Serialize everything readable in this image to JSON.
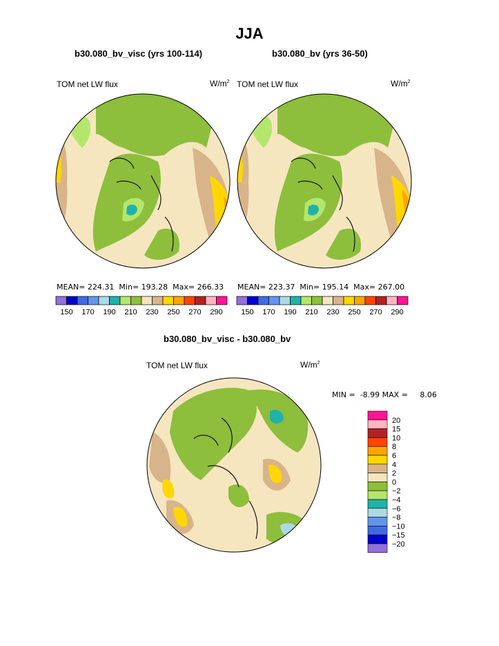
{
  "figure": {
    "title": "JJA",
    "maps": [
      {
        "subtitle": "b30.080_bv_visc (yrs 100-114)",
        "variable": "TOM net LW flux",
        "units_base": "W/m",
        "units_exp": "2",
        "stats": {
          "mean_label": "MEAN=",
          "mean": "224.31",
          "min_label": "Min=",
          "min": "193.28",
          "max_label": "Max=",
          "max": "266.33"
        }
      },
      {
        "subtitle": "b30.080_bv (yrs 36-50)",
        "variable": "TOM net LW flux",
        "units_base": "W/m",
        "units_exp": "2",
        "stats": {
          "mean_label": "MEAN=",
          "mean": "223.37",
          "min_label": "Min=",
          "min": "195.14",
          "max_label": "Max=",
          "max": "267.00"
        }
      }
    ],
    "diff": {
      "subtitle": "b30.080_bv_visc - b30.080_bv",
      "variable": "TOM net LW flux",
      "units_base": "W/m",
      "units_exp": "2",
      "min_label": "MIN =",
      "min": "-8.99",
      "max_label": "MAX =",
      "max": "8.06"
    }
  },
  "chart_data": [
    {
      "type": "heatmap",
      "projection": "north polar stereographic",
      "title": "b30.080_bv_visc (yrs 100-114)",
      "variable": "TOM net LW flux",
      "units": "W/m2",
      "mean": 224.31,
      "min": 193.28,
      "max": 266.33,
      "colorbar_levels": [
        150,
        170,
        190,
        210,
        230,
        250,
        270,
        290
      ],
      "colorbar_colors": [
        "#9370db",
        "#0000cd",
        "#4169e1",
        "#6495ed",
        "#add8e6",
        "#20b2aa",
        "#b3e66b",
        "#8dbe3c",
        "#f5e6c0",
        "#d8b48a",
        "#ffd700",
        "#ffa500",
        "#ff4500",
        "#b22222",
        "#ffb6c1",
        "#ff1493"
      ]
    },
    {
      "type": "heatmap",
      "projection": "north polar stereographic",
      "title": "b30.080_bv (yrs 36-50)",
      "variable": "TOM net LW flux",
      "units": "W/m2",
      "mean": 223.37,
      "min": 195.14,
      "max": 267.0,
      "colorbar_levels": [
        150,
        170,
        190,
        210,
        230,
        250,
        270,
        290
      ],
      "colorbar_colors": [
        "#9370db",
        "#0000cd",
        "#4169e1",
        "#6495ed",
        "#add8e6",
        "#20b2aa",
        "#b3e66b",
        "#8dbe3c",
        "#f5e6c0",
        "#d8b48a",
        "#ffd700",
        "#ffa500",
        "#ff4500",
        "#b22222",
        "#ffb6c1",
        "#ff1493"
      ]
    },
    {
      "type": "heatmap",
      "projection": "north polar stereographic",
      "title": "b30.080_bv_visc - b30.080_bv",
      "variable": "TOM net LW flux",
      "units": "W/m2",
      "min": -8.99,
      "max": 8.06,
      "colorbar_levels": [
        "20",
        "15",
        "10",
        "8",
        "6",
        "4",
        "2",
        "0",
        "−2",
        "−4",
        "−6",
        "−8",
        "−10",
        "−15",
        "−20"
      ],
      "colorbar_colors": [
        "#ff1493",
        "#ffb6c1",
        "#b22222",
        "#ff4500",
        "#ffa500",
        "#ffd700",
        "#d8b48a",
        "#f5e6c0",
        "#8dbe3c",
        "#b3e66b",
        "#20b2aa",
        "#add8e6",
        "#6495ed",
        "#4169e1",
        "#0000cd",
        "#9370db"
      ]
    }
  ]
}
